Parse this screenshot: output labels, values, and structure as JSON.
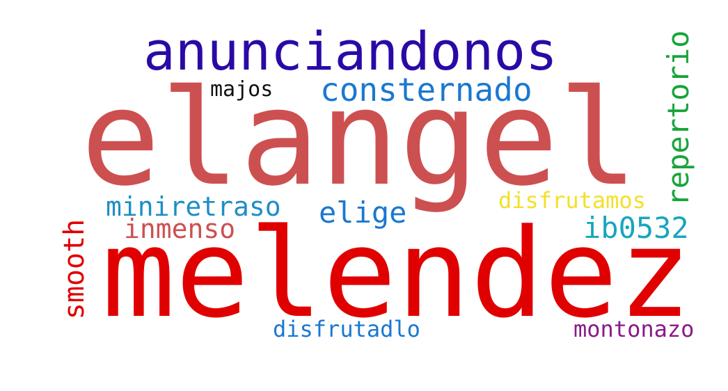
{
  "wordcloud": {
    "words": [
      {
        "text": "elangel",
        "color": "#cd5051"
      },
      {
        "text": "melendez",
        "color": "#e00000"
      },
      {
        "text": "anunciandonos",
        "color": "#2a0aa6"
      },
      {
        "text": "consternado",
        "color": "#1a78d0"
      },
      {
        "text": "majos",
        "color": "#111111"
      },
      {
        "text": "repertorio",
        "color": "#17a43a"
      },
      {
        "text": "miniretraso",
        "color": "#1e8ec8"
      },
      {
        "text": "inmenso",
        "color": "#cd5051"
      },
      {
        "text": "elige",
        "color": "#1a78d0"
      },
      {
        "text": "disfrutamos",
        "color": "#f2e02a"
      },
      {
        "text": "ib0532",
        "color": "#17a6bf"
      },
      {
        "text": "smooth",
        "color": "#e00000"
      },
      {
        "text": "disfrutadlo",
        "color": "#1a78d0"
      },
      {
        "text": "montonazo",
        "color": "#8a1a86"
      }
    ]
  }
}
